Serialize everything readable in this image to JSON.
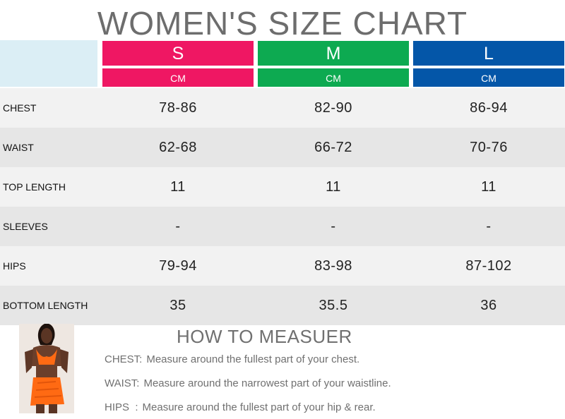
{
  "title": "WOMEN'S SIZE CHART",
  "sizes": [
    {
      "label": "S",
      "unit": "CM",
      "color": "#ef1763"
    },
    {
      "label": "M",
      "unit": "CM",
      "color": "#0daa51"
    },
    {
      "label": "L",
      "unit": "CM",
      "color": "#0456a8"
    }
  ],
  "rows": [
    {
      "label": "CHEST",
      "values": [
        "78-86",
        "82-90",
        "86-94"
      ]
    },
    {
      "label": "WAIST",
      "values": [
        "62-68",
        "66-72",
        "70-76"
      ]
    },
    {
      "label": "TOP LENGTH",
      "values": [
        "11",
        "11",
        "11"
      ]
    },
    {
      "label": "SLEEVES",
      "values": [
        "-",
        "-",
        "-"
      ]
    },
    {
      "label": "HIPS",
      "values": [
        "79-94",
        "83-98",
        "87-102"
      ]
    },
    {
      "label": "BOTTOM LENGTH",
      "values": [
        "35",
        "35.5",
        "36"
      ]
    }
  ],
  "how_to": {
    "heading": "HOW TO MEASUER",
    "items": [
      {
        "key": "CHEST:",
        "text": "Measure around the fullest part of your chest."
      },
      {
        "key": "WAIST:",
        "text": "Measure around the narrowest part of your waistline."
      },
      {
        "key": "HIPS  :",
        "text": "Measure around the fullest part of your hip & rear."
      }
    ]
  }
}
